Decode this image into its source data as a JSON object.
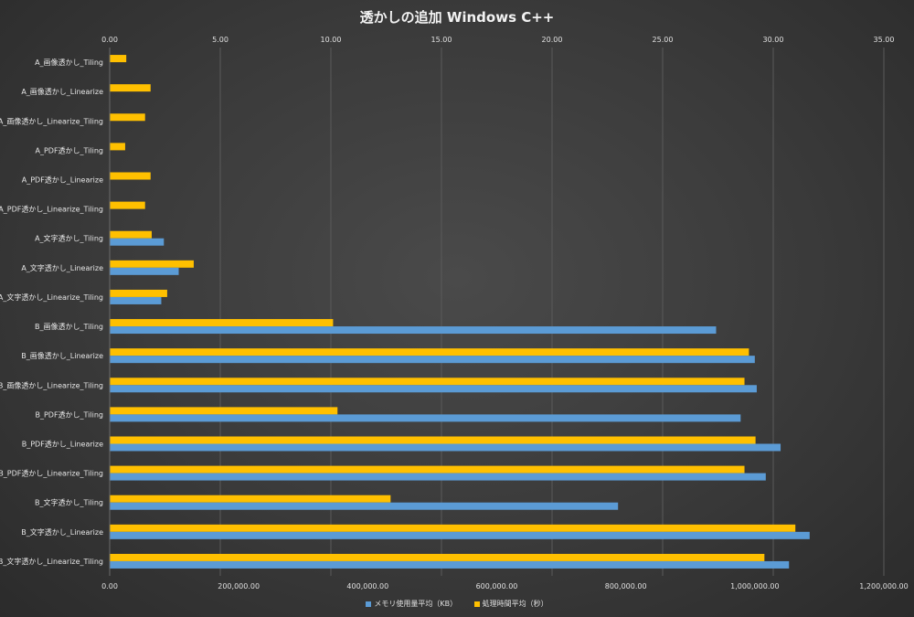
{
  "chart_data": {
    "type": "bar",
    "orientation": "horizontal",
    "title": "透かしの追加 Windows C++",
    "categories": [
      "A_画像透かし_Tiling",
      "A_画像透かし_Linearize",
      "A_画像透かし_Linearize_Tiling",
      "A_PDF透かし_Tiling",
      "A_PDF透かし_Linearize",
      "A_PDF透かし_Linearize_Tiling",
      "A_文字透かし_Tiling",
      "A_文字透かし_Linearize",
      "A_文字透かし_Linearize_Tiling",
      "B_画像透かし_Tiling",
      "B_画像透かし_Linearize",
      "B_画像透かし_Linearize_Tiling",
      "B_PDF透かし_Tiling",
      "B_PDF透かし_Linearize",
      "B_PDF透かし_Linearize_Tiling",
      "B_文字透かし_Tiling",
      "B_文字透かし_Linearize",
      "B_文字透かし_Linearize_Tiling"
    ],
    "series": [
      {
        "name": "メモリ使用量平均（KB）",
        "axis": "bottom",
        "color": "#5b9bd5",
        "values": [
          0,
          0,
          0,
          0,
          0,
          0,
          84000,
          107000,
          80000,
          940000,
          1000000,
          1003000,
          978000,
          1040000,
          1017000,
          788000,
          1085000,
          1053000
        ]
      },
      {
        "name": "処理時間平均（秒）",
        "axis": "top",
        "color": "#ffc000",
        "values": [
          0.75,
          1.85,
          1.6,
          0.7,
          1.85,
          1.6,
          1.9,
          3.8,
          2.6,
          10.1,
          28.9,
          28.7,
          10.3,
          29.2,
          28.7,
          12.7,
          31.0,
          29.6
        ]
      }
    ],
    "x_bottom": {
      "lim": [
        0,
        1200000
      ],
      "ticks": [
        "0.00",
        "200,000.00",
        "400,000.00",
        "600,000.00",
        "800,000.00",
        "1,000,000.00",
        "1,200,000.00"
      ]
    },
    "x_top": {
      "lim": [
        0,
        35
      ],
      "ticks": [
        "0.00",
        "5.00",
        "10.00",
        "15.00",
        "20.00",
        "25.00",
        "30.00",
        "35.00"
      ]
    },
    "grid": true,
    "legend_position": "bottom"
  },
  "legend": {
    "memory_label": "メモリ使用量平均（KB）",
    "time_label": "処理時間平均（秒）"
  }
}
